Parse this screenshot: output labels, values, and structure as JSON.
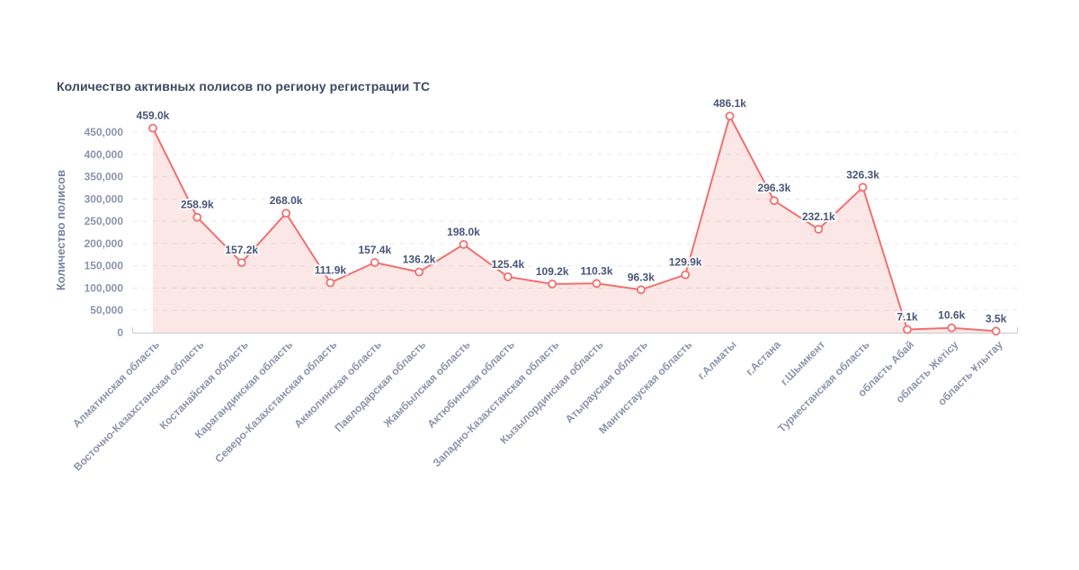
{
  "page": {
    "background_color": "#ffffff"
  },
  "chart_data": {
    "type": "area",
    "title": "Количество активных полисов по региону регистрации ТС",
    "xlabel": "",
    "ylabel": "Количество полисов",
    "legend": "none",
    "grid": "horizontal-dashed",
    "ylim": [
      0,
      450000
    ],
    "ytick_values": [
      0,
      50000,
      100000,
      150000,
      200000,
      250000,
      300000,
      350000,
      400000,
      450000
    ],
    "ytick_labels": [
      "0",
      "50,000",
      "100,000",
      "150,000",
      "200,000",
      "250,000",
      "300,000",
      "350,000",
      "400,000",
      "450,000"
    ],
    "categories": [
      "Алматинская область",
      "Восточно-Казахстанская область",
      "Костанайская область",
      "Карагандинская область",
      "Северо-Казахстанская область",
      "Акмолинская область",
      "Павлодарская область",
      "Жамбылская область",
      "Актюбинская область",
      "Западно-Казахстанская область",
      "Кызылординская область",
      "Атырауская область",
      "Мангистауская область",
      "г.Алматы",
      "г.Астана",
      "г.Шымкент",
      "Туркестанская область",
      "область Абай",
      "область Жетісу",
      "область Ұлытау"
    ],
    "values": [
      459000,
      258900,
      157200,
      268000,
      111900,
      157400,
      136200,
      198000,
      125400,
      109200,
      110300,
      96300,
      129900,
      486100,
      296300,
      232100,
      326300,
      7100,
      10600,
      3500
    ],
    "point_labels": [
      "459.0k",
      "258.9k",
      "157.2k",
      "268.0k",
      "111.9k",
      "157.4k",
      "136.2k",
      "198.0k",
      "125.4k",
      "109.2k",
      "110.3k",
      "96.3k",
      "129.9k",
      "486.1k",
      "296.3k",
      "232.1k",
      "326.3k",
      "7.1k",
      "10.6k",
      "3.5k"
    ],
    "colors": {
      "line": "#ef7170",
      "area_fill": "rgba(240,114,112,0.17)",
      "marker_fill": "#ffffff",
      "marker_stroke": "#ef7170",
      "point_label": "#4a5578",
      "point_label_halo": "#ffffff",
      "axis_text": "#8c94ab",
      "y_axis_title": "#7a84a0",
      "title": "#3d4963",
      "gridline": "#e7e7ef",
      "axis_line": "#c6cad4"
    }
  }
}
